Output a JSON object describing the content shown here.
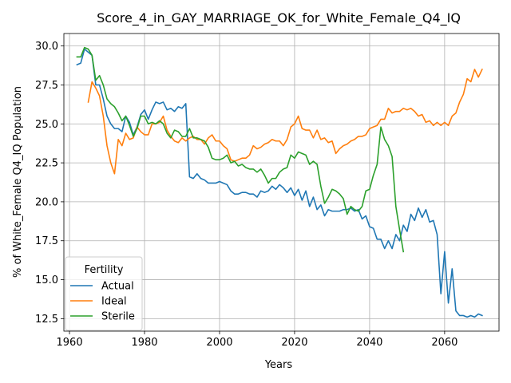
{
  "chart_data": {
    "type": "line",
    "title": "Score_4_in_GAY_MARRIAGE_OK_for_White_Female_Q4_IQ",
    "xlabel": "Years",
    "ylabel": "% of White_Female Q4_IQ Population",
    "xlim": [
      1958.5,
      2074.5
    ],
    "ylim": [
      11.7,
      30.8
    ],
    "xticks": [
      1960,
      1980,
      2000,
      2020,
      2040,
      2060
    ],
    "yticks": [
      12.5,
      15.0,
      17.5,
      20.0,
      22.5,
      25.0,
      27.5,
      30.0
    ],
    "ytick_labels": [
      "12.5",
      "15.0",
      "17.5",
      "20.0",
      "22.5",
      "25.0",
      "27.5",
      "30.0"
    ],
    "grid": true,
    "legend": {
      "title": "Fertility",
      "position": "lower-left"
    },
    "series": [
      {
        "name": "Actual",
        "color": "#1f77b4",
        "x": [
          1962,
          1963,
          1964,
          1965,
          1966,
          1967,
          1968,
          1969,
          1970,
          1971,
          1972,
          1973,
          1974,
          1975,
          1976,
          1977,
          1978,
          1979,
          1980,
          1981,
          1982,
          1983,
          1984,
          1985,
          1986,
          1987,
          1988,
          1989,
          1990,
          1991,
          1992,
          1993,
          1994,
          1995,
          1996,
          1997,
          1998,
          1999,
          2000,
          2001,
          2002,
          2003,
          2004,
          2005,
          2006,
          2007,
          2008,
          2009,
          2010,
          2011,
          2012,
          2013,
          2014,
          2015,
          2016,
          2017,
          2018,
          2019,
          2020,
          2021,
          2022,
          2023,
          2024,
          2025,
          2026,
          2027,
          2028,
          2029,
          2030,
          2031,
          2032,
          2033,
          2034,
          2035,
          2036,
          2037,
          2038,
          2039,
          2040,
          2041,
          2042,
          2043,
          2044,
          2045,
          2046,
          2047,
          2048,
          2049,
          2050,
          2051,
          2052,
          2053,
          2054,
          2055,
          2056,
          2057,
          2058,
          2059,
          2060,
          2061,
          2062,
          2063,
          2064,
          2065,
          2066,
          2067,
          2068,
          2069,
          2070
        ],
        "y": [
          28.8,
          28.9,
          29.8,
          29.6,
          29.4,
          27.5,
          27.5,
          26.6,
          25.5,
          25.0,
          24.7,
          24.7,
          24.5,
          25.5,
          25.1,
          24.3,
          24.8,
          25.6,
          25.9,
          25.3,
          25.9,
          26.4,
          26.3,
          26.4,
          25.9,
          26.0,
          25.8,
          26.1,
          26.0,
          26.3,
          21.6,
          21.5,
          21.8,
          21.5,
          21.4,
          21.2,
          21.2,
          21.2,
          21.3,
          21.2,
          21.1,
          20.7,
          20.5,
          20.5,
          20.6,
          20.6,
          20.5,
          20.5,
          20.3,
          20.7,
          20.6,
          20.7,
          21.0,
          20.8,
          21.1,
          20.9,
          20.6,
          20.9,
          20.4,
          20.8,
          20.1,
          20.7,
          19.7,
          20.3,
          19.5,
          19.8,
          19.1,
          19.5,
          19.4,
          19.4,
          19.4,
          19.5,
          19.5,
          19.6,
          19.4,
          19.5,
          18.9,
          19.1,
          18.4,
          18.3,
          17.6,
          17.6,
          17.0,
          17.5,
          17.0,
          17.9,
          17.5,
          18.5,
          18.1,
          19.2,
          18.8,
          19.6,
          19.0,
          19.5,
          18.7,
          18.8,
          17.9,
          14.1,
          16.8,
          13.5,
          15.7,
          13.0,
          12.7,
          12.7,
          12.6,
          12.7,
          12.6,
          12.8,
          12.7
        ]
      },
      {
        "name": "Ideal",
        "color": "#ff7f0e",
        "x": [
          1965,
          1966,
          1967,
          1968,
          1969,
          1970,
          1971,
          1972,
          1973,
          1974,
          1975,
          1976,
          1977,
          1978,
          1979,
          1980,
          1981,
          1982,
          1983,
          1984,
          1985,
          1986,
          1987,
          1988,
          1989,
          1990,
          1991,
          1992,
          1993,
          1994,
          1995,
          1996,
          1997,
          1998,
          1999,
          2000,
          2001,
          2002,
          2003,
          2004,
          2005,
          2006,
          2007,
          2008,
          2009,
          2010,
          2011,
          2012,
          2013,
          2014,
          2015,
          2016,
          2017,
          2018,
          2019,
          2020,
          2021,
          2022,
          2023,
          2024,
          2025,
          2026,
          2027,
          2028,
          2029,
          2030,
          2031,
          2032,
          2033,
          2034,
          2035,
          2036,
          2037,
          2038,
          2039,
          2040,
          2041,
          2042,
          2043,
          2044,
          2045,
          2046,
          2047,
          2048,
          2049,
          2050,
          2051,
          2052,
          2053,
          2054,
          2055,
          2056,
          2057,
          2058,
          2059,
          2060,
          2061,
          2062,
          2063,
          2064,
          2065,
          2066,
          2067,
          2068,
          2069,
          2070
        ],
        "y": [
          26.4,
          27.7,
          27.3,
          26.8,
          25.5,
          23.6,
          22.5,
          21.8,
          24.0,
          23.6,
          24.4,
          24.0,
          24.1,
          24.8,
          24.5,
          24.3,
          24.3,
          25.0,
          25.0,
          25.1,
          25.5,
          24.6,
          24.2,
          23.9,
          23.8,
          24.1,
          23.9,
          24.1,
          24.2,
          24.0,
          24.0,
          23.7,
          24.1,
          24.3,
          23.9,
          23.9,
          23.6,
          23.4,
          22.7,
          22.6,
          22.7,
          22.8,
          22.8,
          23.0,
          23.6,
          23.4,
          23.5,
          23.7,
          23.8,
          24.0,
          23.9,
          23.9,
          23.6,
          24.0,
          24.8,
          25.0,
          25.5,
          24.7,
          24.6,
          24.6,
          24.1,
          24.6,
          24.0,
          24.1,
          23.8,
          23.9,
          23.1,
          23.4,
          23.6,
          23.7,
          23.9,
          24.0,
          24.2,
          24.2,
          24.3,
          24.7,
          24.8,
          24.9,
          25.3,
          25.3,
          26.0,
          25.7,
          25.8,
          25.8,
          26.0,
          25.9,
          26.0,
          25.8,
          25.5,
          25.6,
          25.1,
          25.2,
          24.9,
          25.1,
          24.9,
          25.1,
          24.9,
          25.5,
          25.7,
          26.4,
          26.9,
          27.9,
          27.7,
          28.5,
          28.0,
          28.5
        ]
      },
      {
        "name": "Sterile",
        "color": "#2ca02c",
        "x": [
          1962,
          1963,
          1964,
          1965,
          1966,
          1967,
          1968,
          1969,
          1970,
          1971,
          1972,
          1973,
          1974,
          1975,
          1976,
          1977,
          1978,
          1979,
          1980,
          1981,
          1982,
          1983,
          1984,
          1985,
          1986,
          1987,
          1988,
          1989,
          1990,
          1991,
          1992,
          1993,
          1994,
          1995,
          1996,
          1997,
          1998,
          1999,
          2000,
          2001,
          2002,
          2003,
          2004,
          2005,
          2006,
          2007,
          2008,
          2009,
          2010,
          2011,
          2012,
          2013,
          2014,
          2015,
          2016,
          2017,
          2018,
          2019,
          2020,
          2021,
          2022,
          2023,
          2024,
          2025,
          2026,
          2027,
          2028,
          2029,
          2030,
          2031,
          2032,
          2033,
          2034,
          2035,
          2036,
          2037,
          2038,
          2039,
          2040,
          2041,
          2042,
          2043,
          2044,
          2045,
          2046,
          2047,
          2048,
          2049
        ],
        "y": [
          29.3,
          29.3,
          29.9,
          29.8,
          29.4,
          27.8,
          28.1,
          27.5,
          26.6,
          26.3,
          26.1,
          25.7,
          25.2,
          25.5,
          24.9,
          24.2,
          24.7,
          25.5,
          25.5,
          25.0,
          25.1,
          25.0,
          25.2,
          25.0,
          24.4,
          24.1,
          24.6,
          24.5,
          24.2,
          24.2,
          24.7,
          24.1,
          24.1,
          24.0,
          23.9,
          23.5,
          22.8,
          22.7,
          22.7,
          22.8,
          23.0,
          22.5,
          22.6,
          22.3,
          22.4,
          22.2,
          22.1,
          22.1,
          21.9,
          22.1,
          21.7,
          21.2,
          21.5,
          21.5,
          21.9,
          22.1,
          22.2,
          23.0,
          22.8,
          23.2,
          23.1,
          23.0,
          22.4,
          22.6,
          22.4,
          21.0,
          19.9,
          20.3,
          20.8,
          20.7,
          20.5,
          20.2,
          19.2,
          19.7,
          19.5,
          19.4,
          19.7,
          20.7,
          20.8,
          21.7,
          22.4,
          24.8,
          24.0,
          23.6,
          22.9,
          19.7,
          18.2,
          16.8
        ]
      }
    ]
  }
}
